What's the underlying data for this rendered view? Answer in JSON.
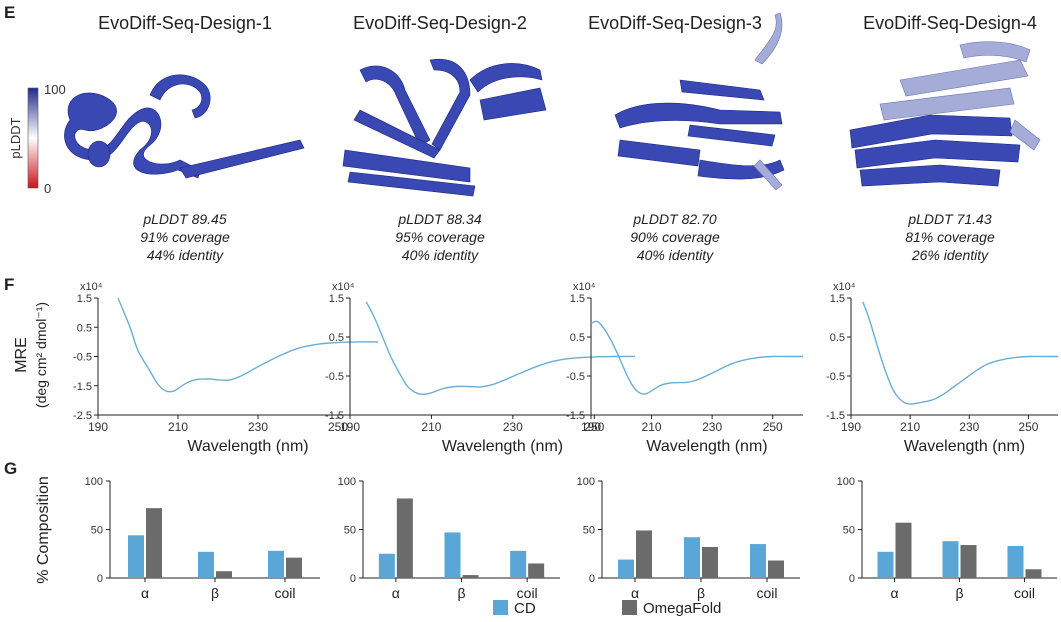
{
  "panel_labels": {
    "e": "E",
    "f": "F",
    "g": "G"
  },
  "colorbar": {
    "label": "pLDDT",
    "max": "100",
    "min": "0",
    "top_color": "#1f2a8c",
    "bottom_color": "#c8151b"
  },
  "designs": [
    {
      "title": "EvoDiff-Seq-Design-1",
      "plddt": "pLDDT 89.45",
      "coverage": "91% coverage",
      "identity": "44% identity",
      "shade": "dark"
    },
    {
      "title": "EvoDiff-Seq-Design-2",
      "plddt": "pLDDT 88.34",
      "coverage": "95% coverage",
      "identity": "40% identity",
      "shade": "dark"
    },
    {
      "title": "EvoDiff-Seq-Design-3",
      "plddt": "pLDDT 82.70",
      "coverage": "90% coverage",
      "identity": "40% identity",
      "shade": "dark"
    },
    {
      "title": "EvoDiff-Seq-Design-4",
      "plddt": "pLDDT 71.43",
      "coverage": "81% coverage",
      "identity": "26% identity",
      "shade": "mixed"
    }
  ],
  "cd_axis": {
    "ylabel_line1": "MRE",
    "ylabel_line2": "(deg cm² dmol⁻¹)",
    "xlabel": "Wavelength (nm)",
    "multiplier": "x10⁴"
  },
  "bar_axis": {
    "ylabel": "% Composition"
  },
  "legend": {
    "cd": "CD",
    "omegafold": "OmegaFold",
    "cd_color": "#5aa6d6",
    "omegafold_color": "#6b6b6b"
  },
  "chart_data": [
    {
      "type": "line",
      "title": "EvoDiff-Seq-Design-1 CD spectrum",
      "xlabel": "Wavelength (nm)",
      "ylabel": "MRE (deg cm² dmol⁻¹)",
      "xlim": [
        190,
        260
      ],
      "ylim": [
        -2.5,
        1.5
      ],
      "xticks": [
        "190",
        "210",
        "230",
        "250"
      ],
      "yticks": [
        "1.5",
        "0.5",
        "-0.5",
        "-1.5",
        "-2.5"
      ],
      "x": [
        195,
        198,
        200,
        203,
        205,
        207,
        209,
        211,
        213,
        215,
        218,
        220,
        223,
        226,
        230,
        235,
        240,
        245,
        250,
        255,
        260
      ],
      "y": [
        1.5,
        0.5,
        -0.3,
        -1.0,
        -1.45,
        -1.68,
        -1.68,
        -1.5,
        -1.35,
        -1.28,
        -1.27,
        -1.3,
        -1.3,
        -1.15,
        -0.85,
        -0.5,
        -0.22,
        -0.08,
        -0.02,
        0.0,
        0.0
      ]
    },
    {
      "type": "line",
      "title": "EvoDiff-Seq-Design-2 CD spectrum",
      "xlabel": "Wavelength (nm)",
      "ylabel": "MRE (deg cm² dmol⁻¹)",
      "xlim": [
        190,
        260
      ],
      "ylim": [
        -1.5,
        1.5
      ],
      "xticks": [
        "190",
        "210",
        "230",
        "250"
      ],
      "yticks": [
        "1.5",
        "0.5",
        "-0.5",
        "-1.5"
      ],
      "x": [
        194,
        196,
        198,
        200,
        202,
        204,
        206,
        208,
        210,
        213,
        216,
        219,
        222,
        225,
        228,
        232,
        236,
        240,
        245,
        250,
        255,
        260
      ],
      "y": [
        1.4,
        1.0,
        0.5,
        0.0,
        -0.4,
        -0.75,
        -0.92,
        -0.97,
        -0.93,
        -0.82,
        -0.77,
        -0.77,
        -0.78,
        -0.72,
        -0.6,
        -0.42,
        -0.25,
        -0.12,
        -0.04,
        -0.01,
        0.0,
        0.0
      ]
    },
    {
      "type": "line",
      "title": "EvoDiff-Seq-Design-3 CD spectrum",
      "xlabel": "Wavelength (nm)",
      "ylabel": "MRE (deg cm² dmol⁻¹)",
      "xlim": [
        190,
        260
      ],
      "ylim": [
        -1.5,
        1.5
      ],
      "xticks": [
        "190",
        "210",
        "230",
        "250"
      ],
      "yticks": [
        "1.5",
        "0.5",
        "-0.5",
        "-1.5"
      ],
      "x": [
        190,
        192,
        194,
        196,
        198,
        200,
        202,
        204,
        206,
        208,
        210,
        213,
        216,
        219,
        222,
        225,
        228,
        232,
        236,
        240,
        245,
        250,
        255,
        260
      ],
      "y": [
        0.85,
        0.9,
        0.75,
        0.5,
        0.2,
        -0.15,
        -0.5,
        -0.78,
        -0.93,
        -0.96,
        -0.88,
        -0.74,
        -0.68,
        -0.67,
        -0.66,
        -0.6,
        -0.5,
        -0.35,
        -0.2,
        -0.1,
        -0.03,
        0.0,
        0.0,
        0.0
      ]
    },
    {
      "type": "line",
      "title": "EvoDiff-Seq-Design-4 CD spectrum",
      "xlabel": "Wavelength (nm)",
      "ylabel": "MRE (deg cm² dmol⁻¹)",
      "xlim": [
        190,
        260
      ],
      "ylim": [
        -1.5,
        1.5
      ],
      "xticks": [
        "190",
        "210",
        "230",
        "250"
      ],
      "yticks": [
        "1.5",
        "0.5",
        "-0.5",
        "-1.5"
      ],
      "x": [
        194,
        196,
        198,
        200,
        202,
        204,
        206,
        208,
        210,
        212,
        215,
        218,
        221,
        224,
        228,
        232,
        236,
        240,
        245,
        250,
        255,
        260
      ],
      "y": [
        1.4,
        1.0,
        0.5,
        0.0,
        -0.45,
        -0.82,
        -1.05,
        -1.18,
        -1.22,
        -1.2,
        -1.16,
        -1.1,
        -0.98,
        -0.82,
        -0.6,
        -0.38,
        -0.2,
        -0.1,
        -0.03,
        0.0,
        0.0,
        0.0
      ]
    },
    {
      "type": "bar",
      "title": "EvoDiff-Seq-Design-1 composition",
      "ylabel": "% Composition",
      "ylim": [
        0,
        100
      ],
      "yticks": [
        "0",
        "50",
        "100"
      ],
      "categories": [
        "α",
        "β",
        "coil"
      ],
      "series": [
        {
          "name": "CD",
          "values": [
            44,
            27,
            28
          ]
        },
        {
          "name": "OmegaFold",
          "values": [
            72,
            7,
            21
          ]
        }
      ]
    },
    {
      "type": "bar",
      "title": "EvoDiff-Seq-Design-2 composition",
      "ylabel": "% Composition",
      "ylim": [
        0,
        100
      ],
      "yticks": [
        "0",
        "50",
        "100"
      ],
      "categories": [
        "α",
        "β",
        "coil"
      ],
      "series": [
        {
          "name": "CD",
          "values": [
            25,
            47,
            28
          ]
        },
        {
          "name": "OmegaFold",
          "values": [
            82,
            3,
            15
          ]
        }
      ]
    },
    {
      "type": "bar",
      "title": "EvoDiff-Seq-Design-3 composition",
      "ylabel": "% Composition",
      "ylim": [
        0,
        100
      ],
      "yticks": [
        "0",
        "50",
        "100"
      ],
      "categories": [
        "α",
        "β",
        "coil"
      ],
      "series": [
        {
          "name": "CD",
          "values": [
            19,
            42,
            35
          ]
        },
        {
          "name": "OmegaFold",
          "values": [
            49,
            32,
            18
          ]
        }
      ]
    },
    {
      "type": "bar",
      "title": "EvoDiff-Seq-Design-4 composition",
      "ylabel": "% Composition",
      "ylim": [
        0,
        100
      ],
      "yticks": [
        "0",
        "50",
        "100"
      ],
      "categories": [
        "α",
        "β",
        "coil"
      ],
      "series": [
        {
          "name": "CD",
          "values": [
            27,
            38,
            33
          ]
        },
        {
          "name": "OmegaFold",
          "values": [
            57,
            34,
            9
          ]
        }
      ]
    }
  ]
}
